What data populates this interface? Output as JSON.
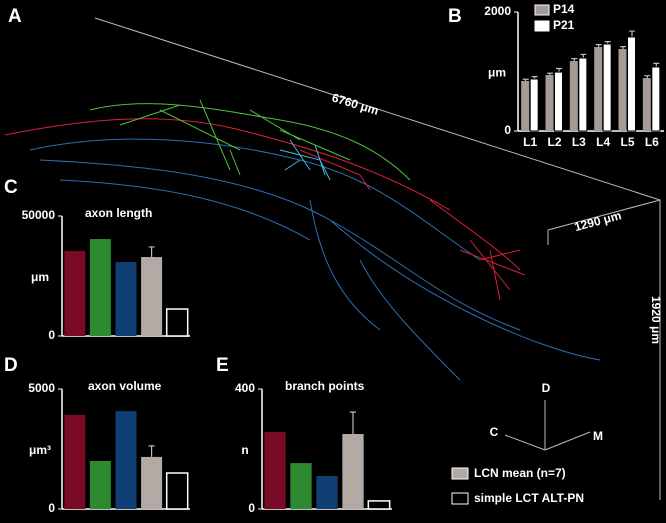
{
  "panel_labels": [
    "A",
    "B",
    "C",
    "D",
    "E"
  ],
  "scale_labels": [
    "6760 μm",
    "1290 μm",
    "1920 μm"
  ],
  "orientation": [
    "D",
    "C",
    "M"
  ],
  "legend": [
    {
      "name": "LCN mean (n=7)",
      "color": "#b3aaa6"
    },
    {
      "name": "simple LCT ALT-PN",
      "color": "#000000"
    }
  ],
  "chart_data": [
    {
      "type": "grouped-bar",
      "y_label": "μm",
      "categories": [
        "L1",
        "L2",
        "L3",
        "L4",
        "L5",
        "L6"
      ],
      "series": [
        {
          "name": "P14",
          "color": "#a49a96",
          "values": [
            840,
            941,
            1176,
            1412,
            1378,
            890
          ],
          "errors": [
            30,
            30,
            40,
            40,
            40,
            40
          ]
        },
        {
          "name": "P21",
          "color": "#ffffff",
          "values": [
            874,
            990,
            1227,
            1462,
            1580,
            1076
          ],
          "errors": [
            40,
            60,
            60,
            40,
            100,
            60
          ]
        }
      ],
      "ylim": [
        0,
        2000
      ],
      "yticks": [
        0,
        2000
      ]
    },
    {
      "type": "bar",
      "title": "axon length",
      "y_label": "μm",
      "categories": [
        null,
        null,
        null,
        null,
        null
      ],
      "values": [
        35400,
        40400,
        30800,
        32900,
        11250
      ],
      "errors": [
        null,
        null,
        null,
        4200,
        null
      ],
      "colors": [
        "#7a0a25",
        "#2e8a2e",
        "#0f3f73",
        "#b3aaa6",
        "#000000"
      ],
      "ylim": [
        0,
        50000
      ],
      "yticks": [
        0,
        50000
      ]
    },
    {
      "type": "bar",
      "title": "axon volume",
      "y_label": "μm³",
      "categories": [
        null,
        null,
        null,
        null,
        null
      ],
      "values": [
        3920,
        2000,
        4080,
        2170,
        1500
      ],
      "errors": [
        null,
        null,
        null,
        460,
        null
      ],
      "colors": [
        "#7a0a25",
        "#2e8a2e",
        "#0f3f73",
        "#b3aaa6",
        "#000000"
      ],
      "ylim": [
        0,
        5000
      ],
      "yticks": [
        0,
        5000
      ]
    },
    {
      "type": "bar",
      "title": "branch points",
      "y_label": "n",
      "categories": [
        null,
        null,
        null,
        null,
        null
      ],
      "values": [
        257,
        153,
        110,
        250,
        27
      ],
      "errors": [
        null,
        null,
        null,
        73,
        null
      ],
      "colors": [
        "#7a0a25",
        "#2e8a2e",
        "#0f3f73",
        "#b3aaa6",
        "#000000"
      ],
      "ylim": [
        0,
        400
      ],
      "yticks": [
        0,
        400
      ]
    }
  ]
}
